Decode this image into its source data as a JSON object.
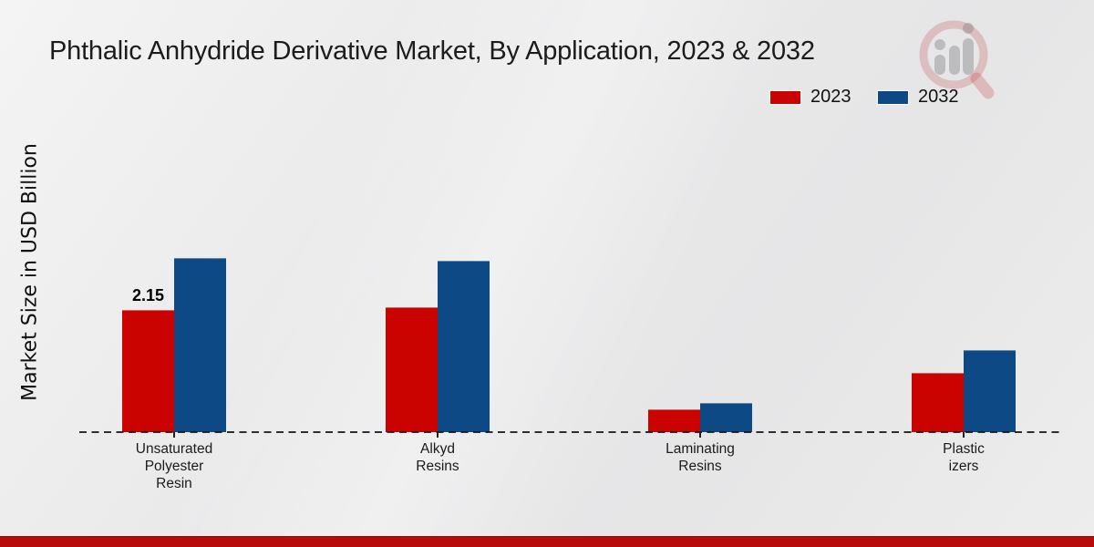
{
  "title": "Phthalic Anhydride Derivative Market, By Application, 2023 & 2032",
  "y_axis_label": "Market Size in USD Billion",
  "legend": [
    {
      "label": "2023",
      "color": "#ca0200"
    },
    {
      "label": "2032",
      "color": "#0d4a85"
    }
  ],
  "watermark_icon": "magnifier-bar-chart-logo",
  "colors": {
    "series_2023": "#ca0200",
    "series_2032": "#0d4a85",
    "footer_band": "#b70b0b",
    "background": "#e9e9ea",
    "axis": "#141414"
  },
  "chart_data": {
    "type": "bar",
    "title": "Phthalic Anhydride Derivative Market, By Application, 2023 & 2032",
    "xlabel": "",
    "ylabel": "Market Size in USD Billion",
    "categories": [
      "Unsaturated Polyester Resin",
      "Alkyd Resins",
      "Laminating Resins",
      "Plastic izers"
    ],
    "category_lines": [
      [
        "Unsaturated",
        "Polyester",
        "Resin"
      ],
      [
        "Alkyd",
        "Resins"
      ],
      [
        "Laminating",
        "Resins"
      ],
      [
        "Plastic",
        "izers"
      ]
    ],
    "series": [
      {
        "name": "2023",
        "color": "#ca0200",
        "values": [
          2.15,
          2.2,
          0.4,
          1.05
        ],
        "labels": [
          "2.15",
          "",
          "",
          ""
        ]
      },
      {
        "name": "2032",
        "color": "#0d4a85",
        "values": [
          3.06,
          3.02,
          0.52,
          1.45
        ],
        "labels": [
          "",
          "",
          "",
          ""
        ]
      }
    ],
    "ylim": [
      0,
      3.8
    ],
    "grid": false,
    "y_axis_ticks_visible": false,
    "baseline_style": "dashed",
    "legend_position": "top-right",
    "annotated_value": "2.15"
  }
}
